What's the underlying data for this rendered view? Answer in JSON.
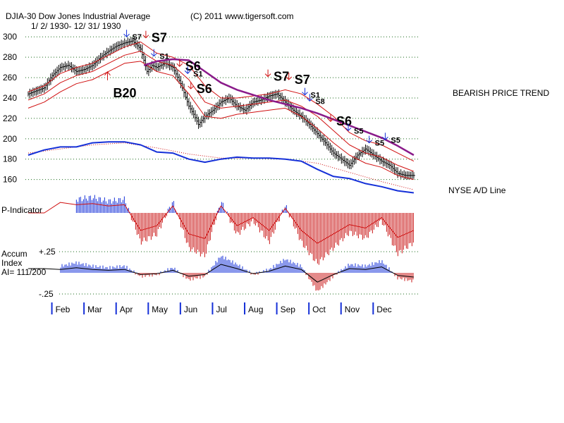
{
  "chart_data": {
    "type": "line",
    "title": "DJIA-30  Dow Jones Industrial Average",
    "subtitle": "1/ 2/ 1930- 12/ 31/ 1930",
    "copyright": "(C) 2011 www.tigersoft.com",
    "price_axis": {
      "ticks": [
        "300",
        "280",
        "260",
        "240",
        "220",
        "200",
        "180",
        "160"
      ],
      "tick_values": [
        300,
        280,
        260,
        240,
        220,
        200,
        180,
        160
      ],
      "ylim": [
        157,
        305
      ]
    },
    "months": [
      "Feb",
      "Mar",
      "Apr",
      "May",
      "Jun",
      "Jul",
      "Aug",
      "Sep",
      "Oct",
      "Nov",
      "Dec"
    ],
    "month_index": [
      1,
      2,
      3,
      4,
      5,
      6,
      7,
      8,
      9,
      10,
      11
    ],
    "xlim": [
      0,
      12.2
    ],
    "series": [
      {
        "name": "DJIA closing price",
        "x": [
          0,
          0.25,
          0.5,
          0.75,
          1.0,
          1.25,
          1.5,
          1.75,
          2.0,
          2.25,
          2.5,
          2.75,
          3.0,
          3.25,
          3.5,
          3.7,
          3.85,
          4.0,
          4.25,
          4.5,
          4.75,
          5.0,
          5.15,
          5.3,
          5.5,
          5.75,
          6.0,
          6.25,
          6.5,
          6.75,
          7.0,
          7.25,
          7.5,
          7.75,
          8.0,
          8.25,
          8.5,
          8.75,
          9.0,
          9.25,
          9.5,
          9.75,
          10.0,
          10.25,
          10.5,
          10.75,
          11.0,
          11.25,
          11.5,
          11.75,
          12.0
        ],
        "values": [
          244,
          247,
          250,
          262,
          270,
          272,
          266,
          268,
          272,
          280,
          286,
          291,
          294,
          296,
          288,
          266,
          272,
          270,
          274,
          270,
          254,
          232,
          224,
          214,
          222,
          228,
          236,
          240,
          232,
          228,
          236,
          238,
          242,
          244,
          236,
          228,
          222,
          214,
          205,
          196,
          186,
          180,
          174,
          184,
          190,
          184,
          178,
          174,
          166,
          164,
          164
        ]
      },
      {
        "name": "21-day moving average",
        "x": [
          0,
          0.5,
          1.0,
          1.5,
          2.0,
          2.5,
          3.0,
          3.5,
          4.0,
          4.5,
          5.0,
          5.5,
          6.0,
          6.5,
          7.0,
          7.5,
          8.0,
          8.5,
          9.0,
          9.5,
          10.0,
          10.5,
          11.0,
          11.5,
          12.0
        ],
        "values": [
          238,
          244,
          255,
          262,
          266,
          274,
          282,
          286,
          276,
          272,
          258,
          236,
          230,
          232,
          234,
          236,
          238,
          232,
          222,
          208,
          194,
          186,
          182,
          174,
          168
        ]
      },
      {
        "name": "Upper band",
        "x": [
          0,
          0.5,
          1.0,
          1.5,
          2.0,
          2.5,
          3.0,
          3.5,
          4.0,
          4.5,
          5.0,
          5.5,
          6.0,
          6.5,
          7.0,
          7.5,
          8.0,
          8.5,
          9.0,
          9.5,
          10.0,
          10.5,
          11.0,
          11.5,
          12.0
        ],
        "values": [
          246,
          252,
          264,
          270,
          274,
          282,
          290,
          295,
          284,
          280,
          272,
          252,
          240,
          240,
          242,
          244,
          248,
          244,
          234,
          222,
          206,
          198,
          194,
          186,
          178
        ]
      },
      {
        "name": "Lower band",
        "x": [
          0,
          0.5,
          1.0,
          1.5,
          2.0,
          2.5,
          3.0,
          3.5,
          4.0,
          4.5,
          5.0,
          5.5,
          6.0,
          6.5,
          7.0,
          7.5,
          8.0,
          8.5,
          9.0,
          9.5,
          10.0,
          10.5,
          11.0,
          11.5,
          12.0
        ],
        "values": [
          230,
          236,
          246,
          254,
          258,
          266,
          274,
          276,
          266,
          262,
          244,
          222,
          220,
          224,
          226,
          228,
          230,
          222,
          210,
          196,
          184,
          176,
          172,
          164,
          160
        ]
      },
      {
        "name": "Resistance trend line",
        "x": [
          3.6,
          4.0,
          4.5,
          5.0,
          5.5,
          6.0,
          6.5,
          7.0,
          7.5,
          8.0,
          8.5,
          9.0,
          9.5,
          10.0,
          10.5,
          11.0,
          11.5,
          12.0
        ],
        "values": [
          272,
          276,
          278,
          277,
          266,
          255,
          248,
          243,
          238,
          234,
          230,
          225,
          219,
          213,
          207,
          201,
          193,
          184
        ]
      },
      {
        "name": "NYSE A/D Line",
        "x": [
          0,
          0.5,
          1.0,
          1.5,
          2.0,
          2.5,
          3.0,
          3.5,
          4.0,
          4.5,
          5.0,
          5.5,
          6.0,
          6.5,
          7.0,
          7.5,
          8.0,
          8.5,
          9.0,
          9.5,
          10.0,
          10.5,
          11.0,
          11.5,
          12.0
        ],
        "values": [
          184,
          189,
          192,
          192,
          196,
          197,
          197,
          194,
          187,
          186,
          180,
          177,
          180,
          182,
          181,
          181,
          180,
          178,
          170,
          163,
          161,
          156,
          153,
          149,
          147
        ]
      },
      {
        "name": "A/D Line moving average",
        "x": [
          0,
          1.0,
          2.0,
          3.0,
          4.0,
          5.0,
          6.0,
          7.0,
          8.0,
          9.0,
          10.0,
          11.0,
          12.0
        ],
        "values": [
          186,
          190,
          194,
          196,
          191,
          185,
          181,
          181,
          180,
          176,
          167,
          158,
          150
        ]
      },
      {
        "name": "P-Indicator",
        "x": [
          0,
          0.5,
          1.0,
          1.5,
          2.0,
          2.5,
          3.0,
          3.5,
          4.0,
          4.5,
          5.0,
          5.5,
          6.0,
          6.5,
          7.0,
          7.5,
          8.0,
          8.5,
          9.0,
          9.5,
          10.0,
          10.5,
          11.0,
          11.5,
          12.0
        ],
        "values": [
          0,
          0,
          18,
          14,
          16,
          12,
          14,
          -30,
          -22,
          12,
          -36,
          -44,
          12,
          -22,
          -8,
          -30,
          8,
          -30,
          -52,
          -36,
          -20,
          -26,
          -8,
          -42,
          -30
        ],
        "ylim": [
          -55,
          25
        ]
      },
      {
        "name": "Accumulation Index",
        "x": [
          0,
          0.5,
          1.0,
          1.5,
          2.0,
          2.5,
          3.0,
          3.5,
          4.0,
          4.5,
          5.0,
          5.5,
          6.0,
          6.5,
          7.0,
          7.5,
          8.0,
          8.5,
          9.0,
          9.5,
          10.0,
          10.5,
          11.0,
          11.5,
          12.0
        ],
        "values": [
          0.1,
          0.1,
          0.08,
          0.12,
          0.08,
          0.06,
          0.08,
          -0.04,
          -0.02,
          0.06,
          -0.08,
          -0.04,
          0.2,
          0.1,
          -0.02,
          0.04,
          0.16,
          0.08,
          -0.22,
          -0.04,
          0.1,
          0.08,
          0.14,
          -0.06,
          -0.1
        ],
        "ylim": [
          -0.3,
          0.4
        ]
      }
    ],
    "accum_labels": [
      "Accum",
      "Index",
      "AI= 111/200"
    ],
    "accum_ticks": [
      "+.25",
      "-.25"
    ],
    "panel_labels": {
      "p_indicator": "P-Indicator",
      "ad_line": "NYSE A/D Line",
      "trend": "BEARISH PRICE TREND"
    },
    "signals": [
      {
        "label": "S7",
        "x": 3.15,
        "y": 300,
        "dir": "sell",
        "size": "small"
      },
      {
        "label": "S7",
        "x": 3.75,
        "y": 299,
        "dir": "sell",
        "size": "big"
      },
      {
        "label": "S1",
        "x": 4.0,
        "y": 281,
        "dir": "sell",
        "size": "small"
      },
      {
        "label": "S6",
        "x": 4.8,
        "y": 271,
        "dir": "sell",
        "size": "big"
      },
      {
        "label": "S1",
        "x": 5.05,
        "y": 264,
        "dir": "sell",
        "size": "small"
      },
      {
        "label": "S6",
        "x": 5.15,
        "y": 249,
        "dir": "sell",
        "size": "big"
      },
      {
        "label": "S7",
        "x": 7.55,
        "y": 261,
        "dir": "sell",
        "size": "big"
      },
      {
        "label": "S7",
        "x": 8.2,
        "y": 258,
        "dir": "sell",
        "size": "big"
      },
      {
        "label": "S1",
        "x": 8.7,
        "y": 243,
        "dir": "sell",
        "size": "small"
      },
      {
        "label": "S8",
        "x": 8.85,
        "y": 237,
        "dir": "sell",
        "size": "small"
      },
      {
        "label": "S6",
        "x": 9.5,
        "y": 217,
        "dir": "sell",
        "size": "big"
      },
      {
        "label": "S5",
        "x": 10.05,
        "y": 208,
        "dir": "sell",
        "size": "small"
      },
      {
        "label": "S5",
        "x": 10.7,
        "y": 196,
        "dir": "sell",
        "size": "small"
      },
      {
        "label": "S5",
        "x": 11.2,
        "y": 199,
        "dir": "sell",
        "size": "small"
      },
      {
        "label": "B20",
        "x": 2.6,
        "y": 256,
        "dir": "buy",
        "size": "big"
      }
    ]
  }
}
